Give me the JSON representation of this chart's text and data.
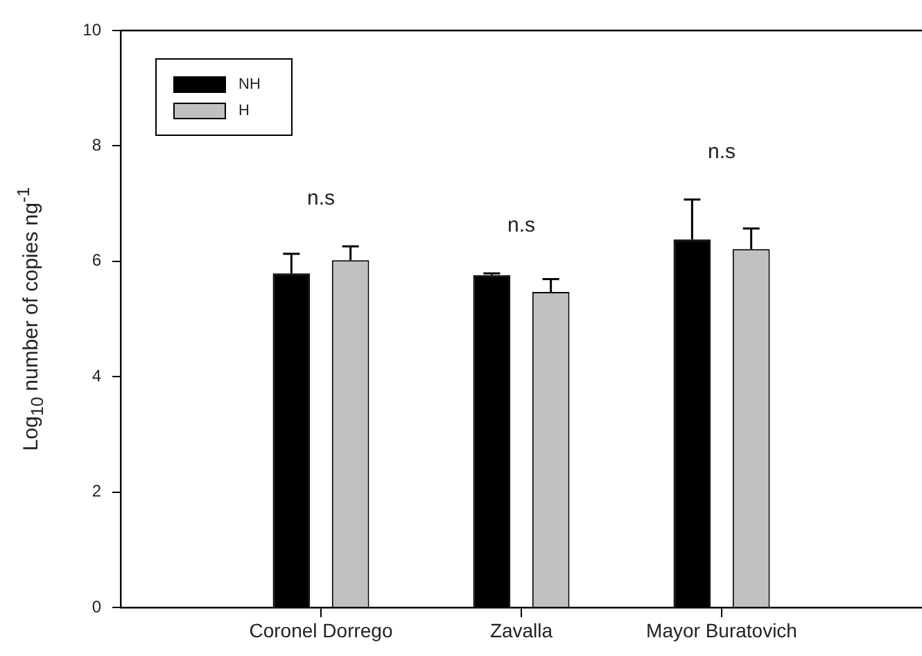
{
  "chart_data": {
    "type": "bar",
    "ylabel": "Log$_{10}$ number of copies ng$^{-1}$",
    "categories": [
      "Coronel Dorrego",
      "Zavalla",
      "Mayor Buratovich"
    ],
    "series": [
      {
        "name": "NH",
        "color": "#000000",
        "values": [
          5.79,
          5.76,
          6.38
        ],
        "errors": [
          [
            5.79,
            6.13
          ],
          [
            5.76,
            5.79
          ],
          [
            6.38,
            7.07
          ]
        ]
      },
      {
        "name": "H",
        "color": "#c0c0c0",
        "values": [
          6.02,
          5.47,
          6.21
        ],
        "errors": [
          [
            6.02,
            6.26
          ],
          [
            5.47,
            5.69
          ],
          [
            6.21,
            6.57
          ]
        ]
      }
    ],
    "ylim": [
      0,
      10
    ],
    "yticks": [
      0,
      2,
      4,
      6,
      8,
      10
    ],
    "grid": false,
    "legend": "top left",
    "annotations": [
      "n.s",
      "n.s",
      "n.s"
    ]
  }
}
